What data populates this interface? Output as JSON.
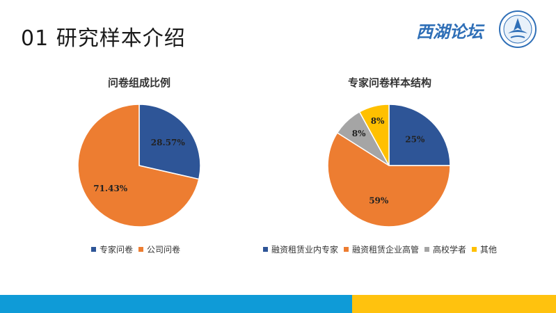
{
  "slide": {
    "title": "01  研究样本介绍",
    "brand": "西湖论坛"
  },
  "colors": {
    "blue": "#2e5597",
    "orange": "#ed7d31",
    "gray": "#a5a5a5",
    "yellow": "#ffc000"
  },
  "chart_data": [
    {
      "type": "pie",
      "title": "问卷组成比例",
      "categories": [
        "专家问卷",
        "公司问卷"
      ],
      "values": [
        28.57,
        71.43
      ],
      "labels": [
        "28.57%",
        "71.43%"
      ],
      "legend": "bottom"
    },
    {
      "type": "pie",
      "title": "专家问卷样本结构",
      "categories": [
        "融资租赁业内专家",
        "融资租赁企业高管",
        "高校学者",
        "其他"
      ],
      "values": [
        25,
        59,
        8,
        8
      ],
      "labels": [
        "25%",
        "59%",
        "8%",
        "8%"
      ],
      "legend": "bottom"
    }
  ]
}
